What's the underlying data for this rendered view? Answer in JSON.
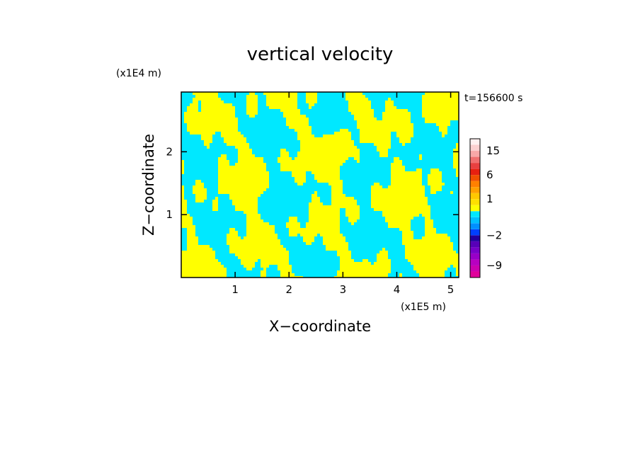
{
  "chart_data": {
    "type": "heatmap",
    "title": "vertical velocity",
    "xlabel": "X−coordinate",
    "ylabel": "Z−coordinate",
    "x_unit": "(x1E5 m)",
    "y_unit": "(x1E4 m)",
    "time_label": "t=156600 s",
    "xlim": [
      0,
      5.15
    ],
    "ylim": [
      0,
      2.95
    ],
    "x_ticks": [
      {
        "value": 1,
        "label": "1"
      },
      {
        "value": 2,
        "label": "2"
      },
      {
        "value": 3,
        "label": "3"
      },
      {
        "value": 4,
        "label": "4"
      },
      {
        "value": 5,
        "label": "5"
      }
    ],
    "y_ticks": [
      {
        "value": 1,
        "label": "1"
      },
      {
        "value": 2,
        "label": "2"
      }
    ],
    "field_colors": {
      "positive": "#ffff00",
      "negative": "#00e8ff"
    },
    "colorbar": {
      "levels": [
        -12,
        -10.5,
        -9,
        -7.5,
        -6,
        -4.5,
        -3,
        -2,
        -1.5,
        -1,
        -0.5,
        0,
        0.5,
        1,
        1.5,
        2,
        4,
        6,
        8,
        10.5,
        13,
        15,
        17.5,
        20
      ],
      "colors": [
        "#e0009a",
        "#cc00b0",
        "#b800c0",
        "#9800c8",
        "#7800c8",
        "#5800b8",
        "#2000a0",
        "#0040ff",
        "#0090ff",
        "#00c0ff",
        "#00e8ff",
        "#ffff00",
        "#ffe000",
        "#ffc800",
        "#ffa000",
        "#ff8000",
        "#f05000",
        "#e62010",
        "#e84040",
        "#f07070",
        "#f8a8a8",
        "#fcd0d0",
        "#fff0f0"
      ],
      "tick_labels": [
        {
          "value": 15,
          "label": "15"
        },
        {
          "value": 6,
          "label": "6"
        },
        {
          "value": 1,
          "label": "1"
        },
        {
          "value": -2,
          "label": "−2"
        },
        {
          "value": -9,
          "label": "−9"
        }
      ]
    }
  }
}
